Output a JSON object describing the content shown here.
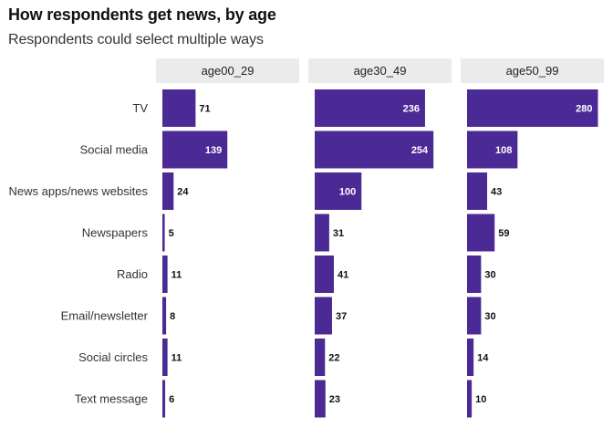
{
  "title": "How respondents get news, by age",
  "subtitle": "Respondents could select multiple ways",
  "colors": {
    "bar": "#4b2a96",
    "strip": "#ebebeb"
  },
  "chart_data": {
    "type": "bar",
    "orientation": "horizontal",
    "faceted": true,
    "categories": [
      "TV",
      "Social media",
      "News apps/news websites",
      "Newspapers",
      "Radio",
      "Email/newsletter",
      "Social circles",
      "Text message"
    ],
    "panels": [
      {
        "name": "age00_29",
        "values": [
          71,
          139,
          24,
          5,
          11,
          8,
          11,
          6
        ]
      },
      {
        "name": "age30_49",
        "values": [
          236,
          254,
          100,
          31,
          41,
          37,
          22,
          23
        ]
      },
      {
        "name": "age50_99",
        "values": [
          280,
          108,
          43,
          59,
          30,
          30,
          14,
          10
        ]
      }
    ],
    "xlim": [
      0,
      300
    ],
    "grid": false,
    "legend": "none"
  }
}
